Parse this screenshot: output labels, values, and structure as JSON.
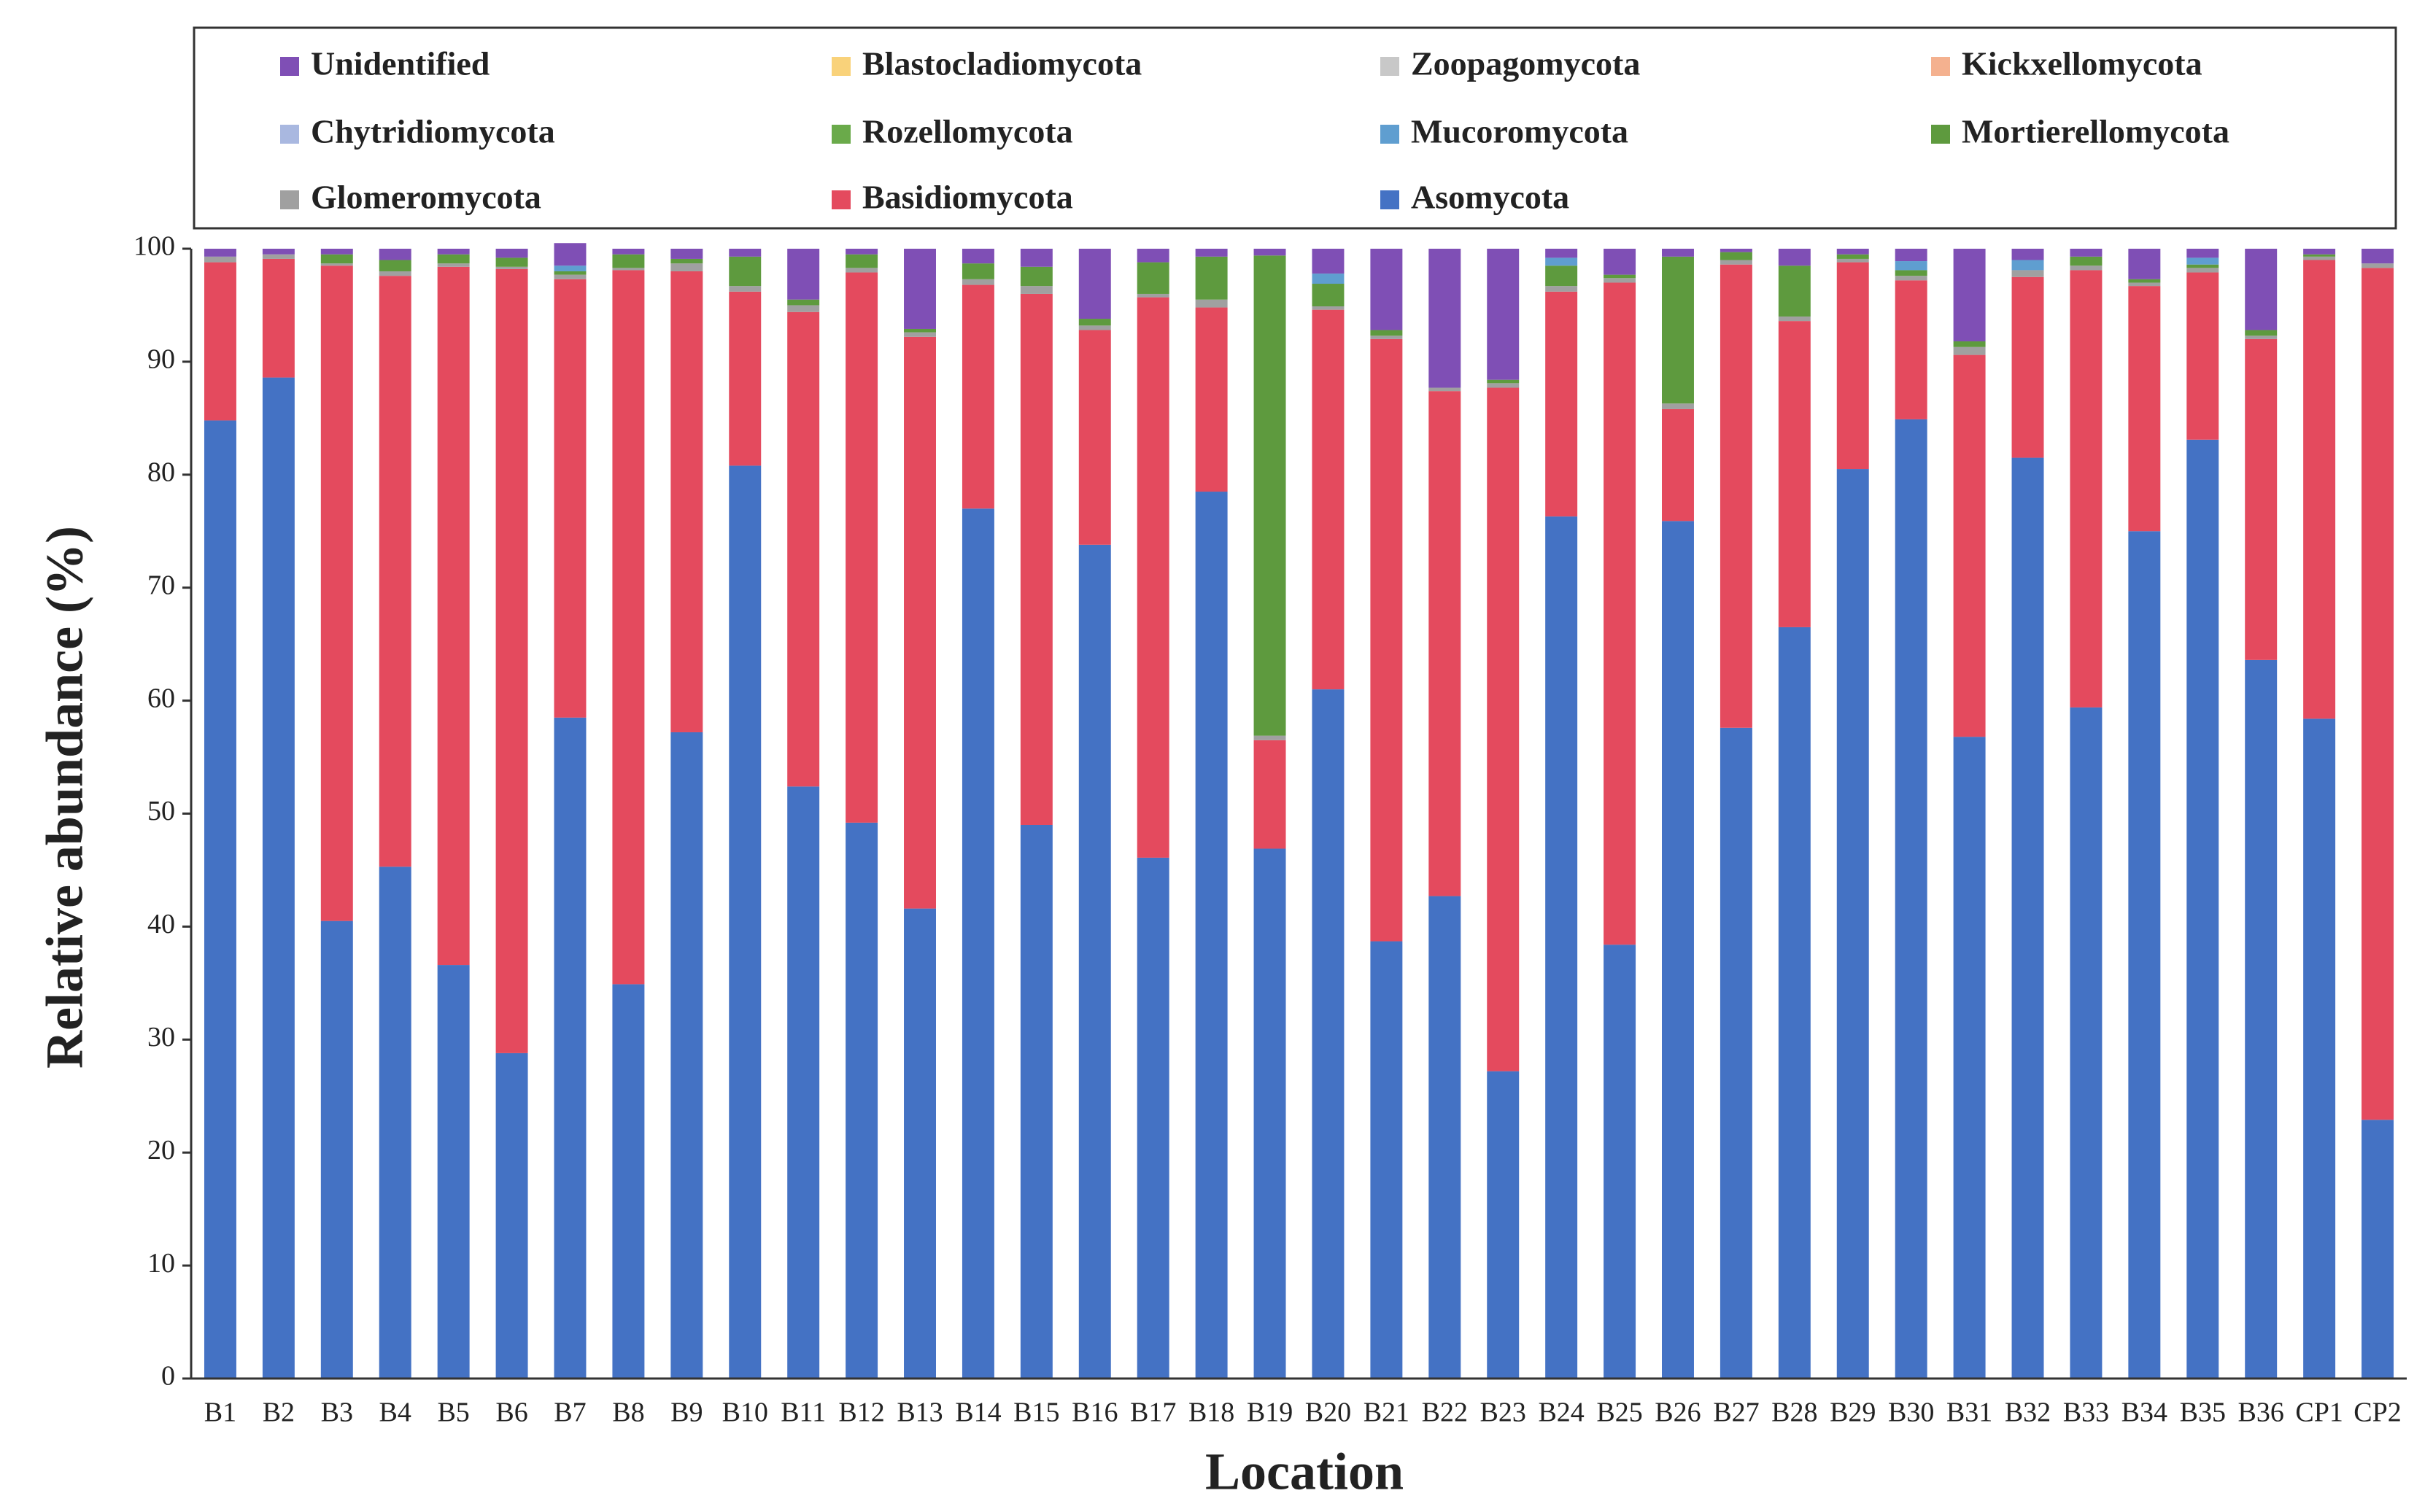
{
  "chart_data": {
    "type": "stacked_bar",
    "x_label": "Location",
    "y_label": "Relative abundance (%)",
    "categories": [
      "B1",
      "B2",
      "B3",
      "B4",
      "B5",
      "B6",
      "B7",
      "B8",
      "B9",
      "B10",
      "B11",
      "B12",
      "B13",
      "B14",
      "B15",
      "B16",
      "B17",
      "B18",
      "B19",
      "B20",
      "B21",
      "B22",
      "B23",
      "B24",
      "B25",
      "B26",
      "B27",
      "B28",
      "B29",
      "B30",
      "B31",
      "B32",
      "B33",
      "B34",
      "B35",
      "B36",
      "CP1",
      "CP2"
    ],
    "ylim": [
      0,
      100
    ],
    "yticks": [
      0,
      10,
      20,
      30,
      40,
      50,
      60,
      70,
      80,
      90,
      100
    ],
    "series": [
      {
        "name": "Unidentified",
        "color": "#7f4fb5",
        "values": [
          0.7,
          0.5,
          0.5,
          1,
          0.5,
          0.8,
          2,
          0.5,
          0.9,
          0.7,
          4.5,
          0.5,
          7.1,
          1.3,
          1.6,
          6.2,
          1.2,
          0.7,
          0.6,
          2.2,
          7.2,
          12.3,
          11.6,
          0.8,
          2.3,
          0.7,
          0.3,
          1.5,
          0.5,
          1.1,
          8.2,
          1,
          0.7,
          2.7,
          0.8,
          7.2,
          0.5,
          1.3
        ]
      },
      {
        "name": "Blastocladiomycota",
        "color": "#f9d27a",
        "values": [
          0,
          0,
          0,
          0,
          0,
          0,
          0,
          0,
          0,
          0,
          0,
          0,
          0,
          0,
          0,
          0,
          0,
          0,
          0,
          0,
          0,
          0,
          0,
          0,
          0,
          0,
          0,
          0,
          0,
          0,
          0,
          0,
          0,
          0,
          0,
          0,
          0,
          0
        ]
      },
      {
        "name": "Zoopagomycota",
        "color": "#c8c8c8",
        "values": [
          0,
          0,
          0,
          0,
          0,
          0,
          0,
          0,
          0,
          0,
          0,
          0,
          0,
          0,
          0,
          0,
          0,
          0,
          0,
          0,
          0,
          0,
          0,
          0,
          0,
          0,
          0,
          0,
          0,
          0,
          0,
          0,
          0,
          0,
          0,
          0,
          0,
          0
        ]
      },
      {
        "name": "Kickxellomycota",
        "color": "#f4b18f",
        "values": [
          0,
          0,
          0,
          0,
          0,
          0,
          0,
          0,
          0,
          0,
          0,
          0,
          0,
          0,
          0,
          0,
          0,
          0,
          0,
          0,
          0,
          0,
          0,
          0,
          0,
          0,
          0,
          0,
          0,
          0,
          0,
          0,
          0,
          0,
          0,
          0,
          0,
          0
        ]
      },
      {
        "name": "Chytridiomycota",
        "color": "#a9b8e0",
        "values": [
          0,
          0,
          0,
          0,
          0,
          0,
          0,
          0,
          0,
          0,
          0,
          0,
          0,
          0,
          0,
          0,
          0,
          0,
          0,
          0,
          0,
          0,
          0,
          0,
          0,
          0,
          0,
          0,
          0,
          0,
          0,
          0,
          0,
          0,
          0,
          0,
          0,
          0
        ]
      },
      {
        "name": "Rozellomycota",
        "color": "#6aaa4a",
        "values": [
          0,
          0,
          0,
          0,
          0,
          0,
          0,
          0,
          0,
          0,
          0,
          0,
          0,
          0,
          0,
          0,
          0,
          0,
          0,
          0,
          0,
          0,
          0,
          0,
          0,
          0,
          0,
          0,
          0,
          0,
          0,
          0,
          0,
          0,
          0,
          0,
          0,
          0
        ]
      },
      {
        "name": "Mucoromycota",
        "color": "#5f9ed0",
        "values": [
          0,
          0,
          0,
          0,
          0,
          0,
          0.5,
          0,
          0,
          0,
          0,
          0,
          0,
          0,
          0,
          0,
          0,
          0,
          0,
          0.9,
          0,
          0,
          0,
          0.7,
          0,
          0,
          0,
          0,
          0,
          0.8,
          0,
          0.9,
          0,
          0,
          0.6,
          0,
          0,
          0
        ]
      },
      {
        "name": "Mortierellomycota",
        "color": "#5e9a3e",
        "values": [
          0,
          0,
          0.8,
          1,
          0.8,
          0.8,
          0.3,
          1.2,
          0.4,
          2.6,
          0.5,
          1.2,
          0.3,
          1.4,
          1.7,
          0.6,
          2.8,
          3.8,
          42.5,
          2,
          0.5,
          0,
          0.3,
          1.8,
          0.3,
          13,
          0.7,
          4.5,
          0.4,
          0.5,
          0.5,
          0,
          0.8,
          0.3,
          0.3,
          0.5,
          0.2,
          0
        ]
      },
      {
        "name": "Glomeromycota",
        "color": "#a0a0a0",
        "values": [
          0.5,
          0.4,
          0.2,
          0.4,
          0.3,
          0.2,
          0.4,
          0.2,
          0.7,
          0.5,
          0.6,
          0.4,
          0.4,
          0.5,
          0.7,
          0.4,
          0.3,
          0.7,
          0.4,
          0.3,
          0.3,
          0.3,
          0.4,
          0.5,
          0.4,
          0.5,
          0.4,
          0.4,
          0.3,
          0.4,
          0.7,
          0.6,
          0.4,
          0.3,
          0.4,
          0.3,
          0.3,
          0.4
        ]
      },
      {
        "name": "Basidiomycota",
        "color": "#e44a5e",
        "values": [
          14,
          10.5,
          58,
          52.3,
          61.8,
          69.4,
          38.8,
          63.2,
          40.8,
          15.4,
          42,
          48.7,
          50.6,
          19.8,
          47,
          19,
          49.6,
          16.3,
          9.6,
          33.6,
          53.3,
          44.7,
          60.5,
          19.9,
          58.6,
          9.9,
          41,
          27.1,
          18.3,
          12.3,
          33.8,
          16,
          38.7,
          21.7,
          14.8,
          28.4,
          40.6,
          75.4
        ]
      },
      {
        "name": "Asomycota",
        "color": "#4472c4",
        "values": [
          84.8,
          88.6,
          40.5,
          45.3,
          36.6,
          28.8,
          58.5,
          34.9,
          57.2,
          80.8,
          52.4,
          49.2,
          41.6,
          77,
          49,
          73.8,
          46.1,
          78.5,
          46.9,
          61,
          38.7,
          42.7,
          27.2,
          76.3,
          38.4,
          75.9,
          57.6,
          66.5,
          80.5,
          84.9,
          56.8,
          81.5,
          59.4,
          75,
          83.1,
          63.6,
          58.4,
          22.9
        ]
      }
    ]
  }
}
